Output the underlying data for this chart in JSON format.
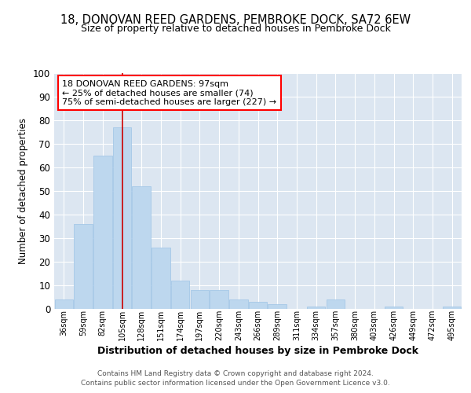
{
  "title_line1": "18, DONOVAN REED GARDENS, PEMBROKE DOCK, SA72 6EW",
  "title_line2": "Size of property relative to detached houses in Pembroke Dock",
  "xlabel": "Distribution of detached houses by size in Pembroke Dock",
  "ylabel": "Number of detached properties",
  "categories": [
    "36sqm",
    "59sqm",
    "82sqm",
    "105sqm",
    "128sqm",
    "151sqm",
    "174sqm",
    "197sqm",
    "220sqm",
    "243sqm",
    "266sqm",
    "289sqm",
    "311sqm",
    "334sqm",
    "357sqm",
    "380sqm",
    "403sqm",
    "426sqm",
    "449sqm",
    "472sqm",
    "495sqm"
  ],
  "values": [
    4,
    36,
    65,
    77,
    52,
    26,
    12,
    8,
    8,
    4,
    3,
    2,
    0,
    1,
    4,
    0,
    0,
    1,
    0,
    0,
    1
  ],
  "bar_color": "#bdd7ee",
  "bar_edge_color": "#9dc3e6",
  "red_line_x": 3.0,
  "ylim": [
    0,
    100
  ],
  "yticks": [
    0,
    10,
    20,
    30,
    40,
    50,
    60,
    70,
    80,
    90,
    100
  ],
  "annotation_box_text_line1": "18 DONOVAN REED GARDENS: 97sqm",
  "annotation_box_text_line2": "← 25% of detached houses are smaller (74)",
  "annotation_box_text_line3": "75% of semi-detached houses are larger (227) →",
  "footer_line1": "Contains HM Land Registry data © Crown copyright and database right 2024.",
  "footer_line2": "Contains public sector information licensed under the Open Government Licence v3.0.",
  "fig_bg_color": "#ffffff",
  "plot_bg_color": "#dce6f1"
}
